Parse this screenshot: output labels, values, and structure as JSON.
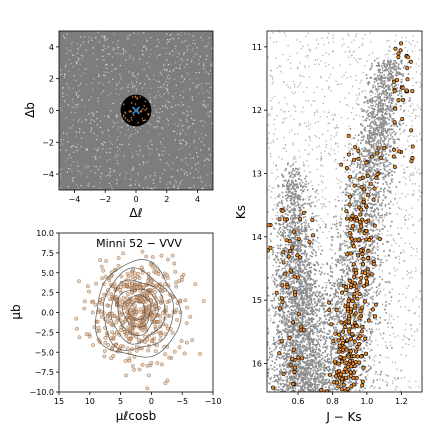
{
  "chart_data": [
    {
      "type": "scatter",
      "panel": "sky-position",
      "xlabel": "Δℓ",
      "ylabel": "Δb",
      "xlim": [
        -5,
        5
      ],
      "ylim": [
        -5,
        5
      ],
      "xticks": [
        -4,
        -2,
        0,
        2,
        4
      ],
      "yticks": [
        -4,
        -2,
        0,
        2,
        4
      ],
      "background_density": "dense field stars (grey)",
      "circle_radius": 1,
      "center": {
        "x": 0,
        "y": 0
      },
      "center_marker": "x",
      "colors": {
        "field": "#808080",
        "circle": "#000000",
        "members": "#c8783c",
        "center": "#3a86c8"
      }
    },
    {
      "type": "scatter",
      "panel": "proper-motion",
      "title": "Minni 52 − VVV",
      "xlabel": "μℓcosb",
      "ylabel": "μb",
      "xlim": [
        15,
        -10
      ],
      "ylim": [
        -10,
        10
      ],
      "xticks": [
        15,
        10,
        5,
        0,
        -5,
        -10
      ],
      "yticks": [
        -10.0,
        -7.5,
        -5.0,
        -2.5,
        0.0,
        2.5,
        5.0,
        7.5,
        10.0
      ],
      "ytick_labels": [
        "−10.0",
        "−7.5",
        "−5.0",
        "−2.5",
        "0.0",
        "2.5",
        "5.0",
        "7.5",
        "10.0"
      ],
      "xtick_labels": [
        "15",
        "10",
        "5",
        "0",
        "−5",
        "−10"
      ],
      "center": {
        "x": 2.3,
        "y": 0.2
      },
      "contours": true,
      "colors": {
        "points": "#d2a57d",
        "contour": "#555555"
      }
    },
    {
      "type": "scatter",
      "panel": "cmd",
      "xlabel": "J − Ks",
      "ylabel": "Ks",
      "xlim": [
        0.42,
        1.32
      ],
      "ylim": [
        16.45,
        10.75
      ],
      "xticks": [
        0.6,
        0.8,
        1.0,
        1.2
      ],
      "yticks": [
        11,
        12,
        13,
        14,
        15,
        16
      ],
      "xtick_labels": [
        "0.6",
        "0.8",
        "1.0",
        "1.2"
      ],
      "ytick_labels": [
        "11",
        "12",
        "13",
        "14",
        "15",
        "16"
      ],
      "colors": {
        "field": "#8c8c8c",
        "members_fill": "#f08c28",
        "members_edge": "#000000"
      }
    }
  ]
}
